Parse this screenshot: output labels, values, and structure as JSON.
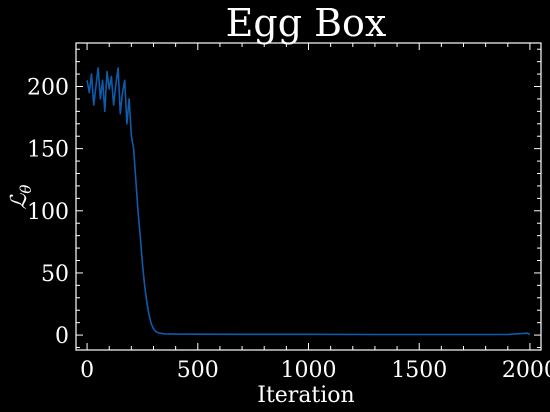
{
  "chart_data": {
    "type": "line",
    "title": "Egg Box",
    "xlabel": "Iteration",
    "ylabel": "ℒ",
    "ylabel_sub": "θ",
    "xlim": [
      -50,
      2050
    ],
    "ylim": [
      -12,
      235
    ],
    "xticks": [
      0,
      500,
      1000,
      1500,
      2000
    ],
    "yticks": [
      0,
      50,
      100,
      150,
      200
    ],
    "xtick_labels": [
      "0",
      "500",
      "1000",
      "1500",
      "2000"
    ],
    "ytick_labels": [
      "0",
      "50",
      "100",
      "150",
      "200"
    ],
    "grid": false,
    "legend": "none",
    "colors": {
      "background": "#000000",
      "axes": "#ffffff",
      "line": "#0d5cab"
    },
    "series": [
      {
        "x": [
          0,
          10,
          20,
          30,
          40,
          50,
          60,
          70,
          80,
          90,
          100,
          110,
          120,
          130,
          140,
          150,
          160,
          170,
          180,
          190,
          200,
          210,
          220,
          230,
          240,
          250,
          260,
          270,
          280,
          290,
          300,
          310,
          320,
          330,
          340,
          350,
          400,
          500,
          700,
          1000,
          1300,
          1600,
          1900,
          1990,
          2000
        ],
        "values": [
          205,
          195,
          210,
          185,
          200,
          215,
          190,
          205,
          180,
          212,
          198,
          208,
          185,
          202,
          215,
          178,
          195,
          205,
          170,
          190,
          160,
          150,
          125,
          100,
          80,
          58,
          40,
          26,
          16,
          9,
          5,
          3,
          2,
          1.5,
          1.2,
          1.0,
          0.8,
          0.7,
          0.6,
          0.6,
          0.5,
          0.5,
          0.5,
          1.5,
          0.5
        ]
      }
    ]
  }
}
